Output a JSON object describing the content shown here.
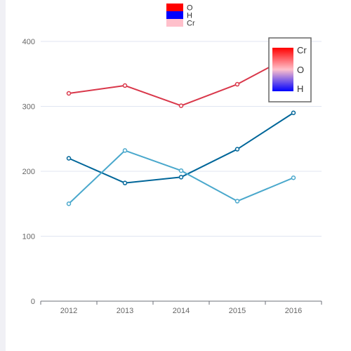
{
  "chart_data": {
    "type": "line",
    "categories": [
      "2012",
      "2013",
      "2014",
      "2015",
      "2016"
    ],
    "ylim": [
      0,
      400
    ],
    "y_ticks": [
      "0",
      "100",
      "200",
      "300",
      "400"
    ],
    "grid": true,
    "series": [
      {
        "values": [
          320,
          332,
          301,
          334,
          380
        ],
        "color": "#d9374a"
      },
      {
        "values": [
          220,
          182,
          191,
          234,
          290
        ],
        "color": "#006699"
      },
      {
        "values": [
          150,
          232,
          201,
          154,
          190
        ],
        "color": "#4aa8cc"
      }
    ],
    "legend": {
      "placement": "top-center",
      "items": [
        {
          "label": "O",
          "color": "#ff0000"
        },
        {
          "label": "H",
          "color": "#0000ff"
        },
        {
          "label": "Cr",
          "color": "#ffc0cb"
        }
      ]
    },
    "visual_map": {
      "placement": "top-right",
      "labels": [
        "Cr",
        "O",
        "H"
      ],
      "colors": [
        "#ff0000",
        "#ffc0cb",
        "#0000ff"
      ]
    }
  }
}
